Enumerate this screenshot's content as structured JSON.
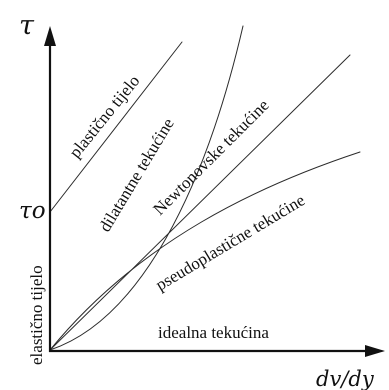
{
  "axes": {
    "y_symbol": "τ",
    "x_symbol": "dv/dy",
    "yield_symbol": "τo",
    "y_axis_label": "elastično tijelo"
  },
  "curve_labels": {
    "plastic": "plastično tijelo",
    "dilatant": "dilatantne tekućine",
    "newtonian": "Newtonovske tekućine",
    "pseudoplastic": "pseudoplastične tekućine",
    "ideal": "idealna tekućina"
  },
  "colors": {
    "curves": "#2b2b2b",
    "axes": "#111111",
    "background": "#ffffff"
  }
}
